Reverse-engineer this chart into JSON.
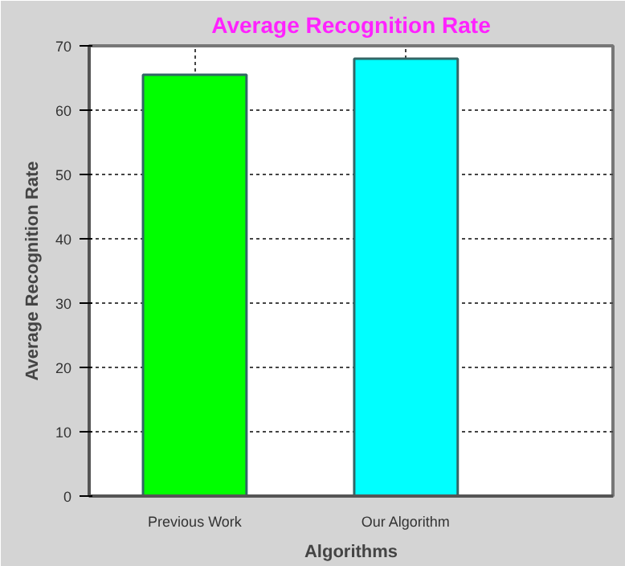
{
  "chart_data": {
    "type": "bar",
    "title": "Average Recognition Rate",
    "xlabel": "Algorithms",
    "ylabel": "Average Recognition Rate",
    "categories": [
      "Previous Work",
      "Our Algorithm"
    ],
    "values": [
      65.5,
      68
    ],
    "colors": [
      "#00ff00",
      "#00ffff"
    ],
    "ylim": [
      0,
      70
    ],
    "yticks": [
      0,
      10,
      20,
      30,
      40,
      50,
      60,
      70
    ],
    "grid": true
  }
}
